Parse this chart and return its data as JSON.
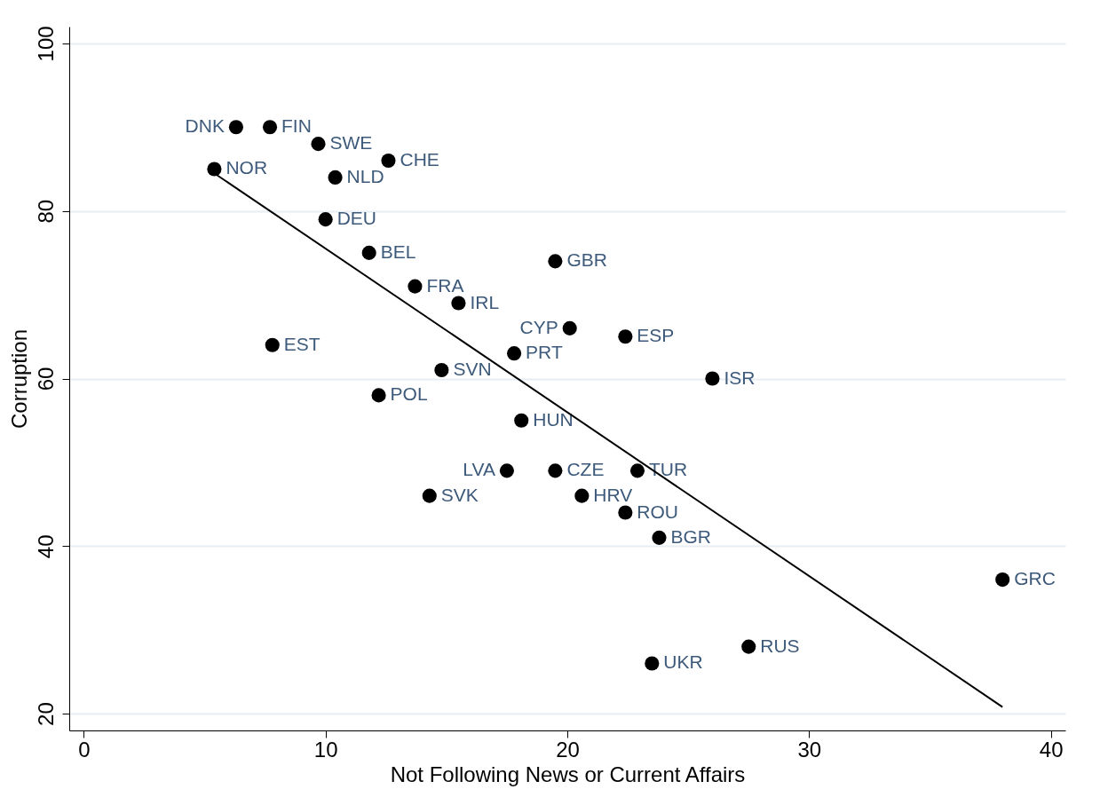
{
  "chart_data": {
    "type": "scatter",
    "xlabel": "Not Following News or Current Affairs",
    "ylabel": "Corruption",
    "xlim": [
      -0.6,
      40.6
    ],
    "ylim": [
      18,
      102
    ],
    "xticks": [
      0,
      10,
      20,
      30,
      40
    ],
    "yticks": [
      20,
      40,
      60,
      80,
      100
    ],
    "grid": "y",
    "series": [
      {
        "color": "#000000",
        "marker": "circle",
        "x": [
          6.3,
          7.7,
          9.7,
          12.6,
          5.4,
          10.4,
          10.0,
          11.8,
          19.5,
          13.7,
          15.5,
          20.1,
          22.4,
          7.8,
          17.8,
          14.8,
          26.0,
          12.2,
          18.1,
          17.5,
          19.5,
          22.9,
          14.3,
          20.6,
          22.4,
          23.8,
          38.0,
          27.5,
          23.5
        ],
        "values": [
          90,
          90,
          88,
          86,
          85,
          84,
          79,
          75,
          74,
          71,
          69,
          66,
          65,
          64,
          63,
          61,
          60,
          58,
          55,
          49,
          49,
          49,
          46,
          46,
          44,
          41,
          36,
          28,
          26
        ],
        "value_labels": [
          "DNK",
          "FIN",
          "SWE",
          "CHE",
          "NOR",
          "NLD",
          "DEU",
          "BEL",
          "GBR",
          "FRA",
          "IRL",
          "CYP",
          "ESP",
          "EST",
          "PRT",
          "SVN",
          "ISR",
          "POL",
          "HUN",
          "LVA",
          "CZE",
          "TUR",
          "SVK",
          "HRV",
          "ROU",
          "BGR",
          "GRC",
          "RUS",
          "UKR"
        ]
      },
      {
        "type": "line",
        "color": "#000000",
        "x": [
          5.4,
          38.0
        ],
        "values": [
          84.5,
          20.8
        ]
      }
    ]
  }
}
